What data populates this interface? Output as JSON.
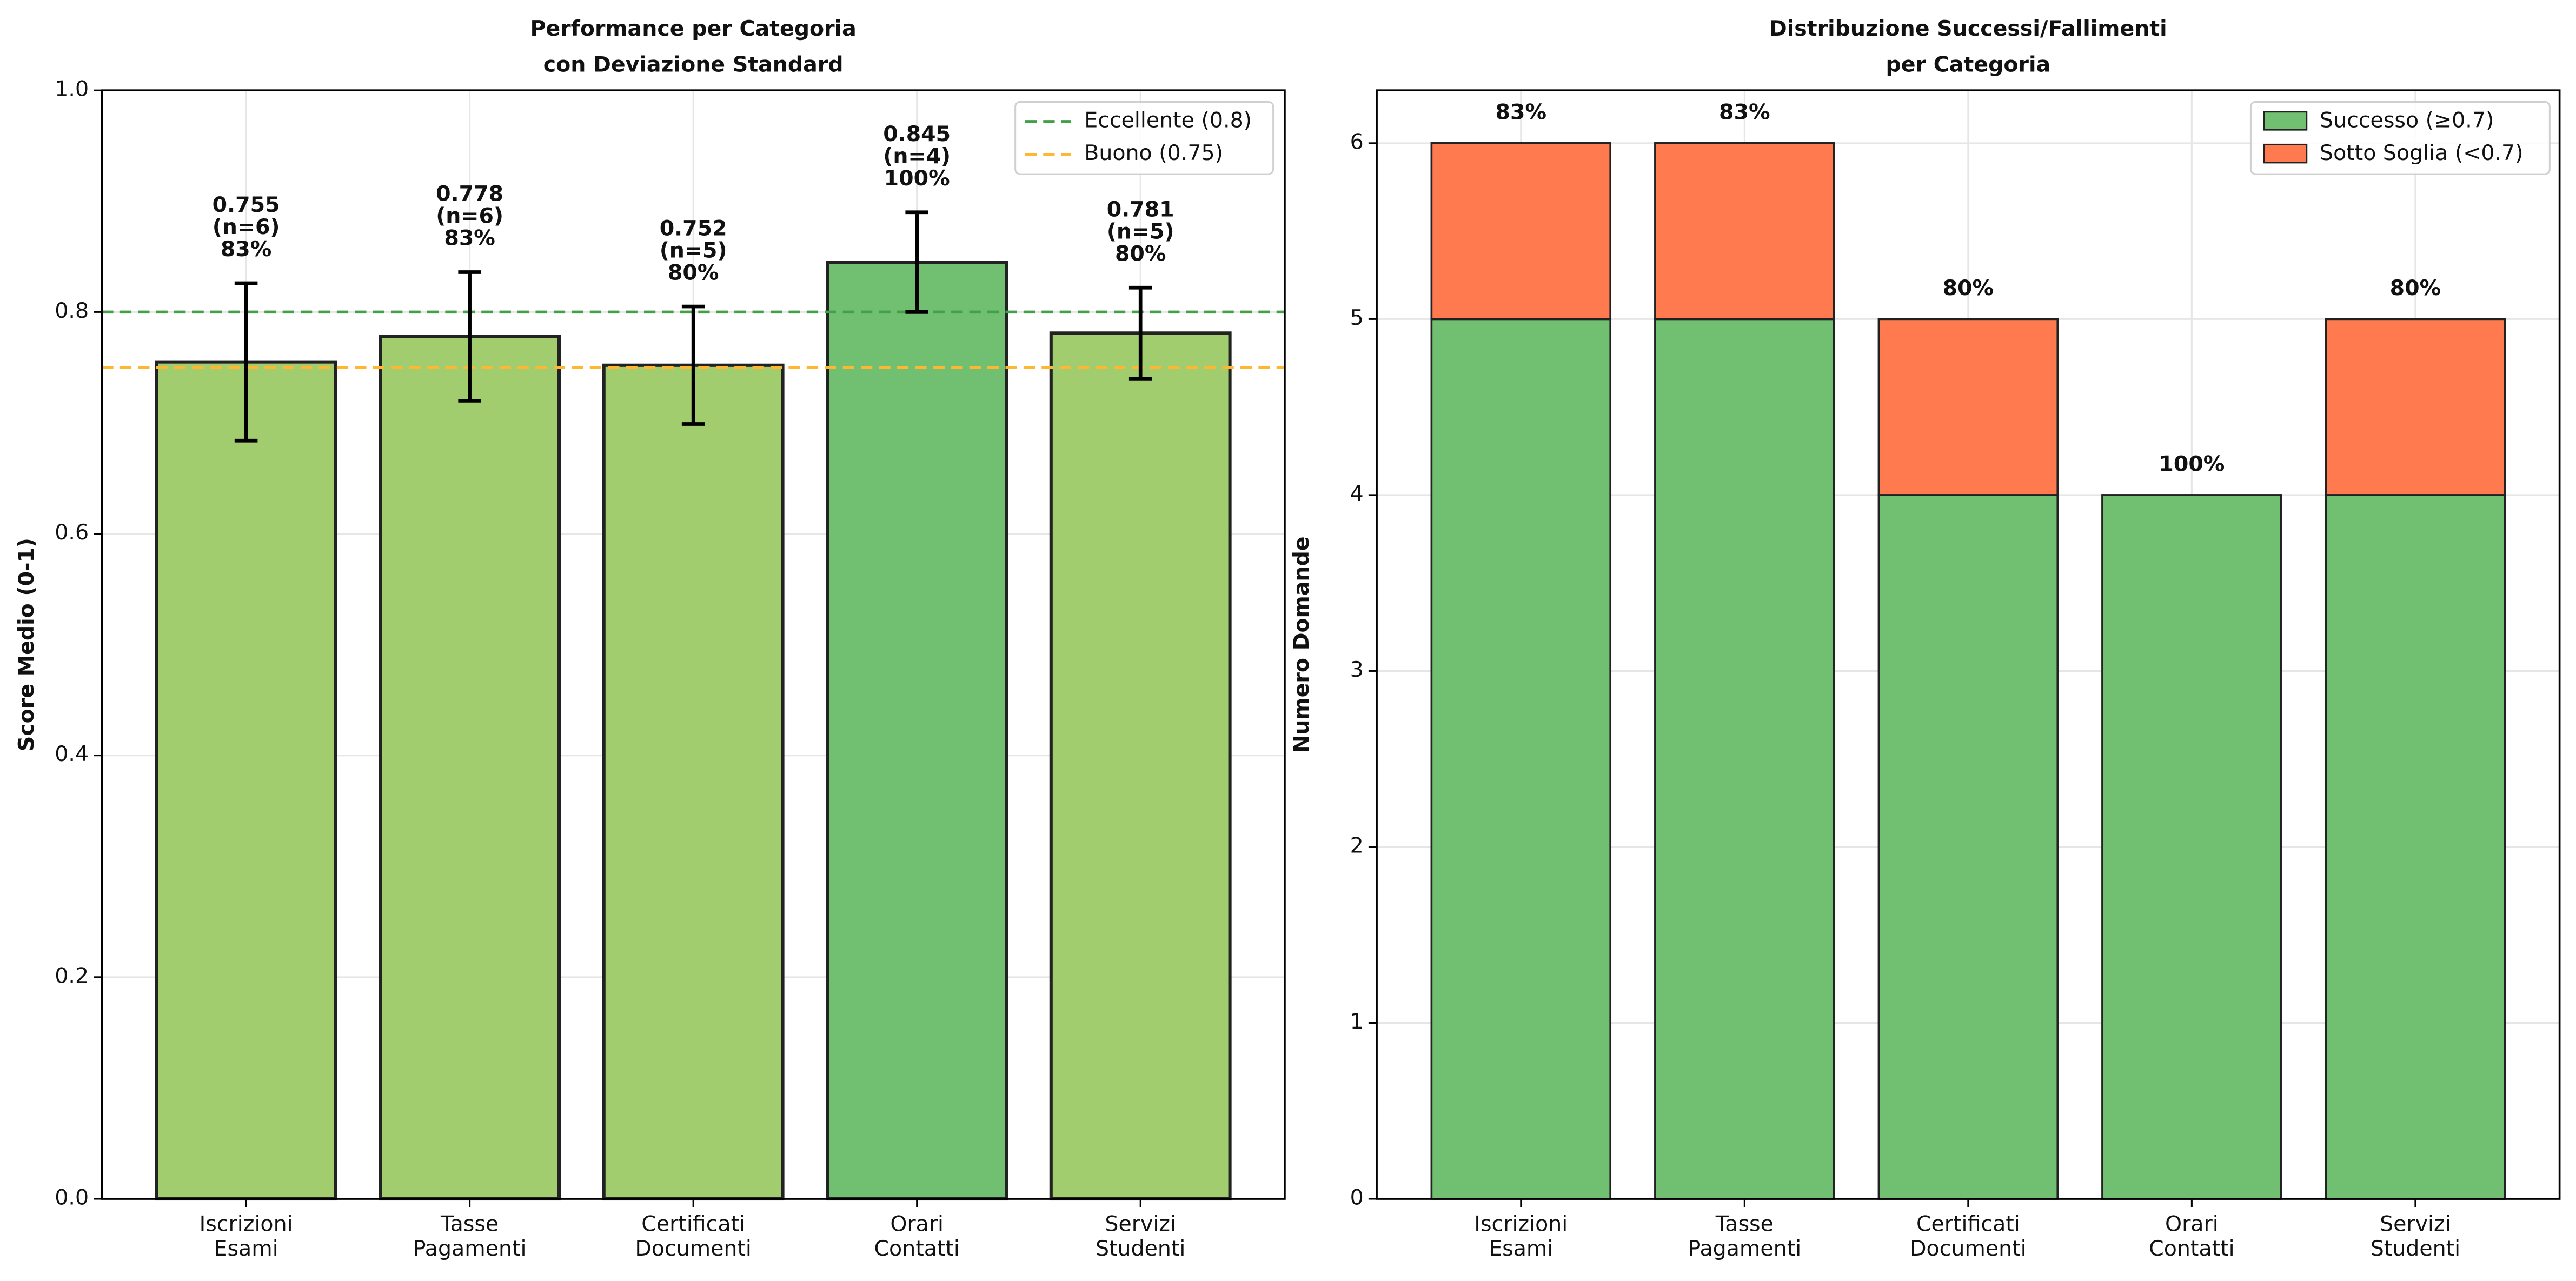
{
  "chart_data": [
    {
      "type": "bar",
      "title": "Performance per Categoria\ncon Deviazione Standard",
      "ylabel": "Score Medio (0-1)",
      "categories": [
        "Iscrizioni\nEsami",
        "Tasse\nPagamenti",
        "Certificati\nDocumenti",
        "Orari\nContatti",
        "Servizi\nStudenti"
      ],
      "values": [
        0.755,
        0.778,
        0.752,
        0.845,
        0.781
      ],
      "errors": [
        0.071,
        0.058,
        0.053,
        0.045,
        0.041
      ],
      "value_labels": [
        "0.755\n(n=6)\n83%",
        "0.778\n(n=6)\n83%",
        "0.752\n(n=5)\n80%",
        "0.845\n(n=4)\n100%",
        "0.781\n(n=5)\n80%"
      ],
      "colors": [
        "#a1cd6e",
        "#a1cd6e",
        "#a1cd6e",
        "#71bf71",
        "#a1cd6e"
      ],
      "reference_lines": [
        {
          "name": "Eccellente (0.8)",
          "value": 0.8,
          "color": "#43a047"
        },
        {
          "name": "Buono (0.75)",
          "value": 0.75,
          "color": "#ffb732"
        }
      ],
      "ylim": [
        0,
        1
      ],
      "yticks": [
        {
          "value": 0,
          "label": "0.0"
        },
        0.2,
        0.4,
        0.6,
        0.8,
        {
          "value": 1,
          "label": "1.0"
        }
      ],
      "grid": true,
      "legend": "upper right"
    },
    {
      "type": "stacked_bar",
      "title": "Distribuzione Successi/Fallimenti\nper Categoria",
      "ylabel": "Numero Domande",
      "categories": [
        "Iscrizioni\nEsami",
        "Tasse\nPagamenti",
        "Certificati\nDocumenti",
        "Orari\nContatti",
        "Servizi\nStudenti"
      ],
      "series": [
        {
          "name": "Successo (≥0.7)",
          "color": "#71bf71",
          "values": [
            5,
            5,
            4,
            4,
            4
          ]
        },
        {
          "name": "Sotto Soglia (<0.7)",
          "color": "#ff7b4f",
          "values": [
            1,
            1,
            1,
            0,
            1
          ]
        }
      ],
      "top_labels": [
        {
          "value": 83,
          "label": "83%"
        },
        {
          "value": 83,
          "label": "83%"
        },
        {
          "value": 80,
          "label": "80%"
        },
        {
          "value": 100,
          "label": "100%"
        },
        {
          "value": 80,
          "label": "80%"
        }
      ],
      "ylim": [
        0,
        6.3
      ],
      "yticks": [
        0,
        1,
        2,
        3,
        4,
        5,
        6
      ],
      "grid": true,
      "legend": "upper right"
    }
  ]
}
